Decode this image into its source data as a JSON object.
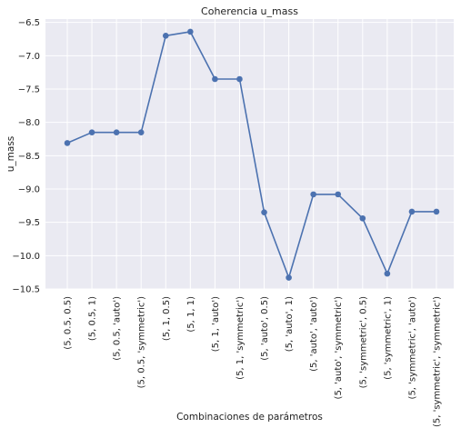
{
  "chart_data": {
    "type": "line",
    "title": "Coherencia u_mass",
    "xlabel": "Combinaciones de parámetros",
    "ylabel": "u_mass",
    "categories": [
      "(5, 0.5, 0.5)",
      "(5, 0.5, 1)",
      "(5, 0.5, 'auto')",
      "(5, 0.5, 'symmetric')",
      "(5, 1, 0.5)",
      "(5, 1, 1)",
      "(5, 1, 'auto')",
      "(5, 1, 'symmetric')",
      "(5, 'auto', 0.5)",
      "(5, 'auto', 1)",
      "(5, 'auto', 'auto')",
      "(5, 'auto', 'symmetric')",
      "(5, 'symmetric', 0.5)",
      "(5, 'symmetric', 1)",
      "(5, 'symmetric', 'auto')",
      "(5, 'symmetric', 'symmetric')"
    ],
    "values": [
      -8.31,
      -8.15,
      -8.15,
      -8.15,
      -6.7,
      -6.64,
      -7.35,
      -7.35,
      -9.35,
      -10.33,
      -9.08,
      -9.08,
      -9.44,
      -10.27,
      -9.34,
      -9.34
    ],
    "ylim": [
      -10.5,
      -6.45
    ],
    "yticks": [
      -6.5,
      -7.0,
      -7.5,
      -8.0,
      -8.5,
      -9.0,
      -9.5,
      -10.0,
      -10.5
    ],
    "ytick_labels": [
      "−6.5",
      "−7.0",
      "−7.5",
      "−8.0",
      "−8.5",
      "−9.0",
      "−9.5",
      "−10.0",
      "−10.5"
    ],
    "grid": true,
    "colors": {
      "line": "#4c72b0",
      "background": "#eaeaf2",
      "grid": "#ffffff"
    }
  }
}
